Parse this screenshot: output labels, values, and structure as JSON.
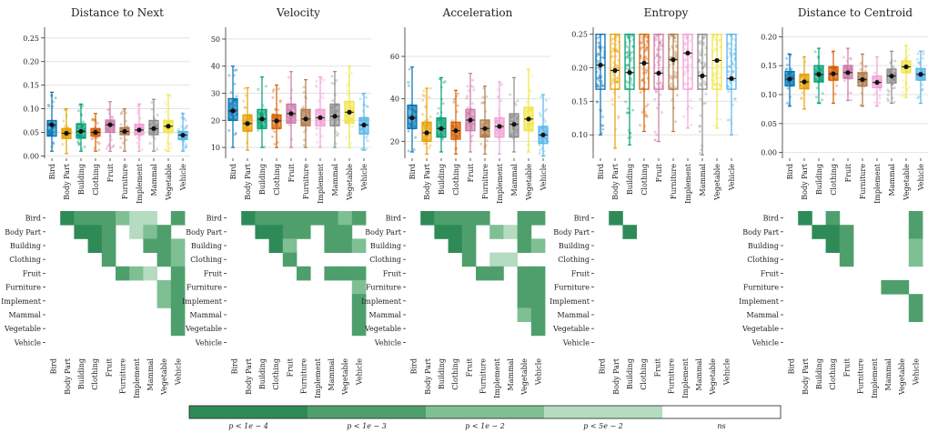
{
  "chart_data": [
    {
      "type": "box",
      "title": "Distance to Next",
      "categories": [
        "Bird",
        "Body Part",
        "Building",
        "Clothing",
        "Fruit",
        "Furniture",
        "Implement",
        "Mammal",
        "Vegetable",
        "Vehicle"
      ],
      "yticks": [
        "0.00",
        "0.05",
        "0.10",
        "0.15",
        "0.20",
        "0.25"
      ],
      "ylim": [
        -0.005,
        0.265
      ],
      "means": [
        0.066,
        0.048,
        0.052,
        0.05,
        0.066,
        0.052,
        0.055,
        0.058,
        0.063,
        0.044
      ],
      "boxes": [
        [
          0.042,
          0.075
        ],
        [
          0.037,
          0.058
        ],
        [
          0.038,
          0.068
        ],
        [
          0.042,
          0.058
        ],
        [
          0.05,
          0.076
        ],
        [
          0.045,
          0.06
        ],
        [
          0.045,
          0.067
        ],
        [
          0.045,
          0.075
        ],
        [
          0.05,
          0.075
        ],
        [
          0.035,
          0.052
        ]
      ],
      "whiskers": [
        [
          0.01,
          0.135
        ],
        [
          0.005,
          0.1
        ],
        [
          0.01,
          0.11
        ],
        [
          0.01,
          0.09
        ],
        [
          0.01,
          0.115
        ],
        [
          0.01,
          0.1
        ],
        [
          0.01,
          0.11
        ],
        [
          0.01,
          0.12
        ],
        [
          0.01,
          0.13
        ],
        [
          0.01,
          0.09
        ]
      ],
      "significance": [
        [
          0,
          0,
          1,
          1,
          1,
          2,
          3,
          3,
          4,
          1
        ],
        [
          0,
          0,
          0,
          0,
          1,
          4,
          3,
          2,
          1,
          4
        ],
        [
          0,
          0,
          0,
          0,
          1,
          4,
          4,
          1,
          1,
          2
        ],
        [
          0,
          0,
          0,
          0,
          1,
          4,
          4,
          4,
          1,
          2
        ],
        [
          0,
          0,
          0,
          0,
          0,
          1,
          2,
          3,
          4,
          1
        ],
        [
          0,
          0,
          0,
          0,
          0,
          0,
          4,
          4,
          2,
          1
        ],
        [
          0,
          0,
          0,
          0,
          0,
          0,
          0,
          4,
          2,
          1
        ],
        [
          0,
          0,
          0,
          0,
          0,
          0,
          0,
          0,
          4,
          1
        ],
        [
          0,
          0,
          0,
          0,
          0,
          0,
          0,
          0,
          0,
          1
        ],
        [
          0,
          0,
          0,
          0,
          0,
          0,
          0,
          0,
          0,
          0
        ]
      ]
    },
    {
      "type": "box",
      "title": "Velocity",
      "categories": [
        "Bird",
        "Body Part",
        "Building",
        "Clothing",
        "Fruit",
        "Furniture",
        "Implement",
        "Mammal",
        "Vegetable",
        "Vehicle"
      ],
      "yticks": [
        "10",
        "20",
        "30",
        "40",
        "50"
      ],
      "ylim": [
        6,
        53
      ],
      "means": [
        23.5,
        18.8,
        20.5,
        19.8,
        22.5,
        20.5,
        21.0,
        21.5,
        23.0,
        18.3
      ],
      "boxes": [
        [
          20,
          28
        ],
        [
          16,
          22
        ],
        [
          17,
          24
        ],
        [
          17,
          22
        ],
        [
          19,
          26
        ],
        [
          18,
          24
        ],
        [
          18,
          24
        ],
        [
          18,
          26
        ],
        [
          19,
          27
        ],
        [
          15,
          21
        ]
      ],
      "whiskers": [
        [
          10,
          40
        ],
        [
          9,
          32
        ],
        [
          10,
          36
        ],
        [
          10,
          33
        ],
        [
          10,
          38
        ],
        [
          10,
          35
        ],
        [
          10,
          36
        ],
        [
          10,
          38
        ],
        [
          10,
          40
        ],
        [
          9,
          30
        ]
      ],
      "significance": [
        [
          0,
          0,
          1,
          1,
          1,
          1,
          1,
          1,
          2,
          1
        ],
        [
          0,
          0,
          0,
          0,
          1,
          1,
          4,
          1,
          1,
          4
        ],
        [
          0,
          0,
          0,
          0,
          2,
          4,
          4,
          1,
          1,
          2
        ],
        [
          0,
          0,
          0,
          0,
          1,
          4,
          4,
          4,
          4,
          4
        ],
        [
          0,
          0,
          0,
          0,
          0,
          1,
          4,
          1,
          1,
          1
        ],
        [
          0,
          0,
          0,
          0,
          0,
          0,
          4,
          4,
          4,
          2
        ],
        [
          0,
          0,
          0,
          0,
          0,
          0,
          0,
          4,
          4,
          1
        ],
        [
          0,
          0,
          0,
          0,
          0,
          0,
          0,
          0,
          4,
          1
        ],
        [
          0,
          0,
          0,
          0,
          0,
          0,
          0,
          0,
          0,
          1
        ],
        [
          0,
          0,
          0,
          0,
          0,
          0,
          0,
          0,
          0,
          0
        ]
      ]
    },
    {
      "type": "box",
      "title": "Acceleration",
      "categories": [
        "Bird",
        "Body Part",
        "Building",
        "Clothing",
        "Fruit",
        "Furniture",
        "Implement",
        "Mammal",
        "Vegetable",
        "Vehicle"
      ],
      "yticks": [
        "20",
        "40",
        "60"
      ],
      "ylim": [
        12,
        72
      ],
      "means": [
        31,
        24,
        26,
        25,
        30,
        26,
        27,
        28,
        30.5,
        23
      ],
      "boxes": [
        [
          26,
          37
        ],
        [
          20,
          29
        ],
        [
          22,
          31
        ],
        [
          21,
          29
        ],
        [
          25,
          35
        ],
        [
          22,
          30
        ],
        [
          22,
          31
        ],
        [
          22,
          33
        ],
        [
          25,
          36
        ],
        [
          19,
          27
        ]
      ],
      "whiskers": [
        [
          15,
          55
        ],
        [
          14,
          45
        ],
        [
          15,
          50
        ],
        [
          14,
          44
        ],
        [
          15,
          52
        ],
        [
          14,
          46
        ],
        [
          14,
          48
        ],
        [
          15,
          50
        ],
        [
          15,
          54
        ],
        [
          13,
          42
        ]
      ],
      "significance": [
        [
          0,
          0,
          1,
          1,
          1,
          1,
          4,
          4,
          1,
          1
        ],
        [
          0,
          0,
          0,
          0,
          1,
          4,
          2,
          3,
          1,
          4
        ],
        [
          0,
          0,
          0,
          0,
          1,
          4,
          4,
          4,
          1,
          2
        ],
        [
          0,
          0,
          0,
          0,
          1,
          4,
          3,
          3,
          4,
          4
        ],
        [
          0,
          0,
          0,
          0,
          0,
          1,
          1,
          4,
          1,
          1
        ],
        [
          0,
          0,
          0,
          0,
          0,
          0,
          4,
          4,
          1,
          1
        ],
        [
          0,
          0,
          0,
          0,
          0,
          0,
          0,
          4,
          1,
          1
        ],
        [
          0,
          0,
          0,
          0,
          0,
          0,
          0,
          0,
          2,
          1
        ],
        [
          0,
          0,
          0,
          0,
          0,
          0,
          0,
          0,
          0,
          1
        ],
        [
          0,
          0,
          0,
          0,
          0,
          0,
          0,
          0,
          0,
          0
        ]
      ]
    },
    {
      "type": "box",
      "title": "Entropy",
      "categories": [
        "Bird",
        "Body Part",
        "Building",
        "Clothing",
        "Fruit",
        "Furniture",
        "Implement",
        "Mammal",
        "Vegetable",
        "Vehicle"
      ],
      "yticks": [
        "0.10",
        "0.15",
        "0.20",
        "0.25"
      ],
      "ylim": [
        0.065,
        0.255
      ],
      "means": [
        0.204,
        0.196,
        0.193,
        0.207,
        0.192,
        0.212,
        0.222,
        0.188,
        0.211,
        0.184
      ],
      "boxes": [
        [
          0.168,
          0.25
        ],
        [
          0.168,
          0.25
        ],
        [
          0.168,
          0.25
        ],
        [
          0.168,
          0.25
        ],
        [
          0.168,
          0.25
        ],
        [
          0.168,
          0.25
        ],
        [
          0.168,
          0.25
        ],
        [
          0.168,
          0.25
        ],
        [
          0.168,
          0.25
        ],
        [
          0.168,
          0.25
        ]
      ],
      "whiskers": [
        [
          0.1,
          0.25
        ],
        [
          0.08,
          0.25
        ],
        [
          0.085,
          0.25
        ],
        [
          0.105,
          0.25
        ],
        [
          0.09,
          0.25
        ],
        [
          0.105,
          0.25
        ],
        [
          0.11,
          0.25
        ],
        [
          0.07,
          0.25
        ],
        [
          0.11,
          0.25
        ],
        [
          0.1,
          0.25
        ]
      ],
      "significance": [
        [
          0,
          0,
          4,
          4,
          4,
          4,
          4,
          4,
          4,
          4
        ],
        [
          0,
          0,
          0,
          4,
          4,
          4,
          4,
          4,
          4,
          4
        ],
        [
          0,
          0,
          0,
          4,
          4,
          4,
          4,
          4,
          4,
          4
        ],
        [
          0,
          0,
          0,
          0,
          4,
          4,
          4,
          4,
          4,
          4
        ],
        [
          0,
          0,
          0,
          0,
          0,
          4,
          4,
          4,
          4,
          4
        ],
        [
          0,
          0,
          0,
          0,
          0,
          0,
          4,
          4,
          4,
          4
        ],
        [
          0,
          0,
          0,
          0,
          0,
          0,
          0,
          4,
          4,
          4
        ],
        [
          0,
          0,
          0,
          0,
          0,
          0,
          0,
          0,
          4,
          4
        ],
        [
          0,
          0,
          0,
          0,
          0,
          0,
          0,
          0,
          0,
          4
        ],
        [
          0,
          0,
          0,
          0,
          0,
          0,
          0,
          0,
          0,
          0
        ]
      ]
    },
    {
      "type": "box",
      "title": "Distance to Centroid",
      "categories": [
        "Bird",
        "Body Part",
        "Building",
        "Clothing",
        "Fruit",
        "Furniture",
        "Implement",
        "Mammal",
        "Vegetable",
        "Vehicle"
      ],
      "yticks": [
        "0.00",
        "0.05",
        "0.10",
        "0.15",
        "0.20"
      ],
      "ylim": [
        -0.01,
        0.21
      ],
      "means": [
        0.127,
        0.122,
        0.135,
        0.136,
        0.138,
        0.126,
        0.121,
        0.132,
        0.148,
        0.135
      ],
      "boxes": [
        [
          0.115,
          0.14
        ],
        [
          0.11,
          0.135
        ],
        [
          0.122,
          0.15
        ],
        [
          0.125,
          0.148
        ],
        [
          0.128,
          0.15
        ],
        [
          0.115,
          0.138
        ],
        [
          0.112,
          0.132
        ],
        [
          0.12,
          0.144
        ],
        [
          0.138,
          0.158
        ],
        [
          0.125,
          0.145
        ]
      ],
      "whiskers": [
        [
          0.08,
          0.17
        ],
        [
          0.075,
          0.165
        ],
        [
          0.085,
          0.18
        ],
        [
          0.085,
          0.175
        ],
        [
          0.09,
          0.18
        ],
        [
          0.08,
          0.17
        ],
        [
          0.08,
          0.165
        ],
        [
          0.085,
          0.175
        ],
        [
          0.095,
          0.185
        ],
        [
          0.085,
          0.175
        ]
      ],
      "significance": [
        [
          0,
          0,
          4,
          1,
          4,
          4,
          4,
          4,
          4,
          1
        ],
        [
          0,
          0,
          0,
          0,
          1,
          4,
          4,
          4,
          4,
          1
        ],
        [
          0,
          0,
          0,
          0,
          1,
          4,
          4,
          4,
          4,
          2
        ],
        [
          0,
          0,
          0,
          0,
          1,
          4,
          4,
          4,
          4,
          2
        ],
        [
          0,
          0,
          0,
          0,
          0,
          4,
          4,
          4,
          4,
          4
        ],
        [
          0,
          0,
          0,
          0,
          0,
          0,
          4,
          1,
          1,
          4
        ],
        [
          0,
          0,
          0,
          0,
          0,
          0,
          0,
          4,
          4,
          1
        ],
        [
          0,
          0,
          0,
          0,
          0,
          0,
          0,
          0,
          4,
          1
        ],
        [
          0,
          0,
          0,
          0,
          0,
          0,
          0,
          0,
          0,
          4
        ],
        [
          0,
          0,
          0,
          0,
          0,
          0,
          0,
          0,
          0,
          0
        ]
      ]
    }
  ],
  "series_colors": [
    "#0072b2",
    "#e69f00",
    "#009e73",
    "#d55e00",
    "#cc79a7",
    "#b07a4a",
    "#f29fd6",
    "#8c8c8c",
    "#f0e442",
    "#56b4e9"
  ],
  "legend": {
    "labels": [
      "p < 1e − 4",
      "p < 1e − 3",
      "p < 1e − 2",
      "p < 5e − 2",
      "ns"
    ],
    "colors": [
      "#2e8b57",
      "#4f9f6d",
      "#7fbf94",
      "#b5dbc0",
      "#ffffff"
    ]
  }
}
